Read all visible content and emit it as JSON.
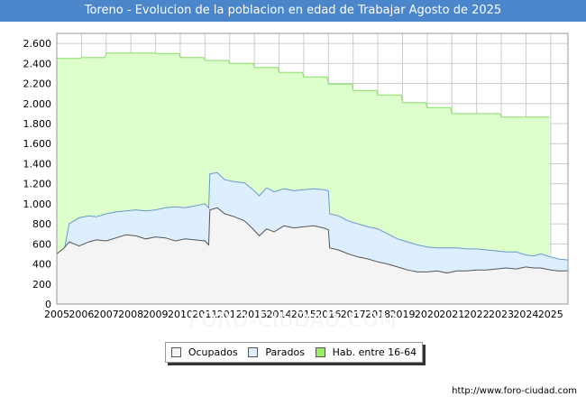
{
  "chart_data": {
    "type": "area",
    "title": "Toreno - Evolucion de la poblacion en edad de Trabajar Agosto de 2025",
    "xlabel": "",
    "ylabel": "",
    "ylim": [
      0,
      2700
    ],
    "xlim": [
      2005,
      2025.7
    ],
    "yticks": [
      0,
      200,
      400,
      600,
      800,
      1000,
      1200,
      1400,
      1600,
      1800,
      2000,
      2200,
      2400,
      2600
    ],
    "ytick_labels": [
      "0",
      "200",
      "400",
      "600",
      "800",
      "1.000",
      "1.200",
      "1.400",
      "1.600",
      "1.800",
      "2.000",
      "2.200",
      "2.400",
      "2.600"
    ],
    "xticks": [
      2005,
      2006,
      2007,
      2008,
      2009,
      2010,
      2011,
      2012,
      2013,
      2014,
      2015,
      2016,
      2017,
      2018,
      2019,
      2020,
      2021,
      2022,
      2023,
      2024,
      2025
    ],
    "xtick_labels": [
      "2005",
      "2006",
      "2007",
      "2008",
      "2009",
      "2010",
      "2011",
      "2012",
      "2013",
      "2014",
      "2015",
      "2016",
      "2017",
      "2018",
      "2019",
      "2020",
      "2021",
      "2022",
      "2023",
      "2024",
      "2025"
    ],
    "grid": true,
    "legend_position": "bottom",
    "series": [
      {
        "name": "Hab. entre 16-64",
        "step": true,
        "color": "#ddffcc",
        "line_color": "#88dd66",
        "x": [
          2005,
          2006,
          2007,
          2008,
          2009,
          2010,
          2011,
          2012,
          2013,
          2014,
          2015,
          2016,
          2017,
          2018,
          2019,
          2020,
          2021,
          2022,
          2023,
          2024
        ],
        "values": [
          2450,
          2460,
          2505,
          2505,
          2500,
          2460,
          2430,
          2400,
          2360,
          2310,
          2265,
          2195,
          2130,
          2085,
          2010,
          1960,
          1900,
          1900,
          1865,
          1865
        ]
      },
      {
        "name": "Parados",
        "color": "#ddeeff",
        "line_color": "#6699cc",
        "x": [
          2005.0,
          2005.3,
          2005.5,
          2005.9,
          2006.3,
          2006.6,
          2007.0,
          2007.4,
          2007.8,
          2008.2,
          2008.6,
          2009.0,
          2009.4,
          2009.8,
          2010.2,
          2010.6,
          2011.0,
          2011.15,
          2011.2,
          2011.5,
          2011.8,
          2012.2,
          2012.6,
          2012.9,
          2013.2,
          2013.5,
          2013.8,
          2014.2,
          2014.6,
          2015.0,
          2015.4,
          2015.8,
          2016.0,
          2016.05,
          2016.4,
          2016.8,
          2017.2,
          2017.6,
          2018.0,
          2018.4,
          2018.8,
          2019.2,
          2019.6,
          2020.0,
          2020.4,
          2020.8,
          2021.2,
          2021.6,
          2022.0,
          2022.4,
          2022.8,
          2023.2,
          2023.6,
          2024.0,
          2024.3,
          2024.6,
          2025.0,
          2025.3,
          2025.7
        ],
        "values": [
          500,
          540,
          800,
          860,
          880,
          870,
          900,
          920,
          930,
          940,
          930,
          940,
          960,
          970,
          960,
          980,
          1000,
          960,
          1300,
          1310,
          1240,
          1220,
          1210,
          1150,
          1080,
          1160,
          1120,
          1150,
          1130,
          1140,
          1150,
          1140,
          1130,
          900,
          880,
          830,
          800,
          770,
          750,
          700,
          650,
          620,
          590,
          570,
          560,
          560,
          560,
          550,
          550,
          540,
          530,
          520,
          520,
          490,
          480,
          500,
          470,
          450,
          440
        ]
      },
      {
        "name": "Ocupados",
        "color": "#f4f4f4",
        "line_color": "#555555",
        "x": [
          2005.0,
          2005.3,
          2005.5,
          2005.9,
          2006.3,
          2006.6,
          2007.0,
          2007.4,
          2007.8,
          2008.2,
          2008.6,
          2009.0,
          2009.4,
          2009.8,
          2010.2,
          2010.6,
          2011.0,
          2011.15,
          2011.2,
          2011.5,
          2011.8,
          2012.2,
          2012.6,
          2012.9,
          2013.2,
          2013.5,
          2013.8,
          2014.2,
          2014.6,
          2015.0,
          2015.4,
          2015.8,
          2016.0,
          2016.05,
          2016.4,
          2016.8,
          2017.2,
          2017.6,
          2018.0,
          2018.4,
          2018.8,
          2019.2,
          2019.6,
          2020.0,
          2020.4,
          2020.8,
          2021.2,
          2021.6,
          2022.0,
          2022.4,
          2022.8,
          2023.2,
          2023.6,
          2024.0,
          2024.3,
          2024.6,
          2025.0,
          2025.3,
          2025.7
        ],
        "values": [
          500,
          560,
          620,
          580,
          620,
          640,
          630,
          660,
          690,
          680,
          650,
          670,
          660,
          630,
          650,
          640,
          630,
          590,
          940,
          960,
          900,
          870,
          830,
          760,
          680,
          750,
          720,
          780,
          760,
          770,
          780,
          760,
          740,
          560,
          540,
          500,
          470,
          450,
          420,
          400,
          370,
          340,
          320,
          320,
          330,
          310,
          330,
          330,
          340,
          340,
          350,
          360,
          350,
          370,
          360,
          360,
          340,
          330,
          330
        ]
      }
    ]
  },
  "legend": {
    "items": [
      {
        "label": "Ocupados",
        "color": "#f4f4f4"
      },
      {
        "label": "Parados",
        "color": "#ddeeff"
      },
      {
        "label": "Hab. entre 16-64",
        "color": "#99ee66"
      }
    ]
  },
  "watermark_text": "FORO-CIUDAD.COM",
  "source_text": "http://www.foro-ciudad.com"
}
